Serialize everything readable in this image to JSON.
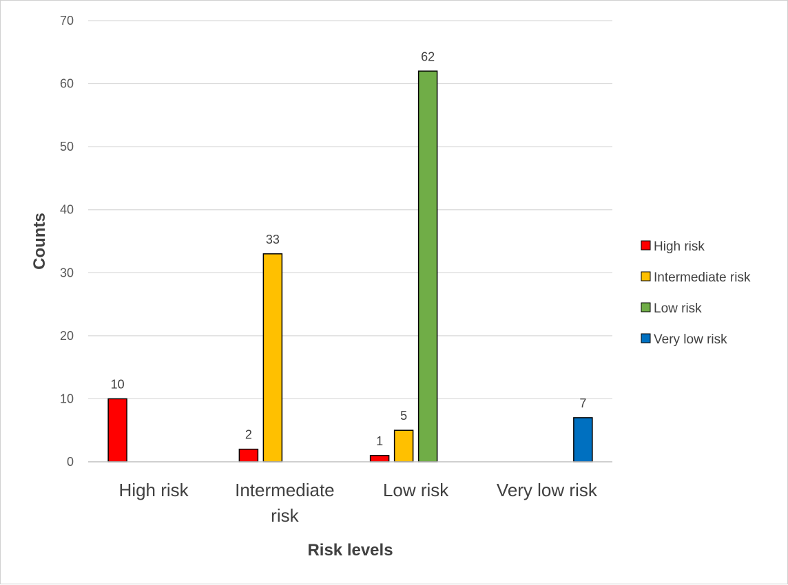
{
  "chart_data": {
    "type": "bar",
    "categories": [
      "High risk",
      "Intermediate risk",
      "Low risk",
      "Very low risk"
    ],
    "category_lines": [
      [
        "High risk"
      ],
      [
        "Intermediate",
        "risk"
      ],
      [
        "Low risk"
      ],
      [
        "Very low risk"
      ]
    ],
    "series": [
      {
        "name": "High risk",
        "color": "#ff0000",
        "values": [
          10,
          2,
          1,
          null
        ]
      },
      {
        "name": "Intermediate risk",
        "color": "#ffc000",
        "values": [
          null,
          33,
          5,
          null
        ]
      },
      {
        "name": "Low risk",
        "color": "#70ad47",
        "values": [
          null,
          null,
          62,
          null
        ]
      },
      {
        "name": "Very low risk",
        "color": "#0070c0",
        "values": [
          null,
          null,
          null,
          7
        ]
      }
    ],
    "xlabel": "Risk levels",
    "ylabel": "Counts",
    "ylim": [
      0,
      70
    ],
    "yticks": [
      0,
      10,
      20,
      30,
      40,
      50,
      60,
      70
    ],
    "grid": true,
    "legend": "right",
    "data_labels": true
  }
}
